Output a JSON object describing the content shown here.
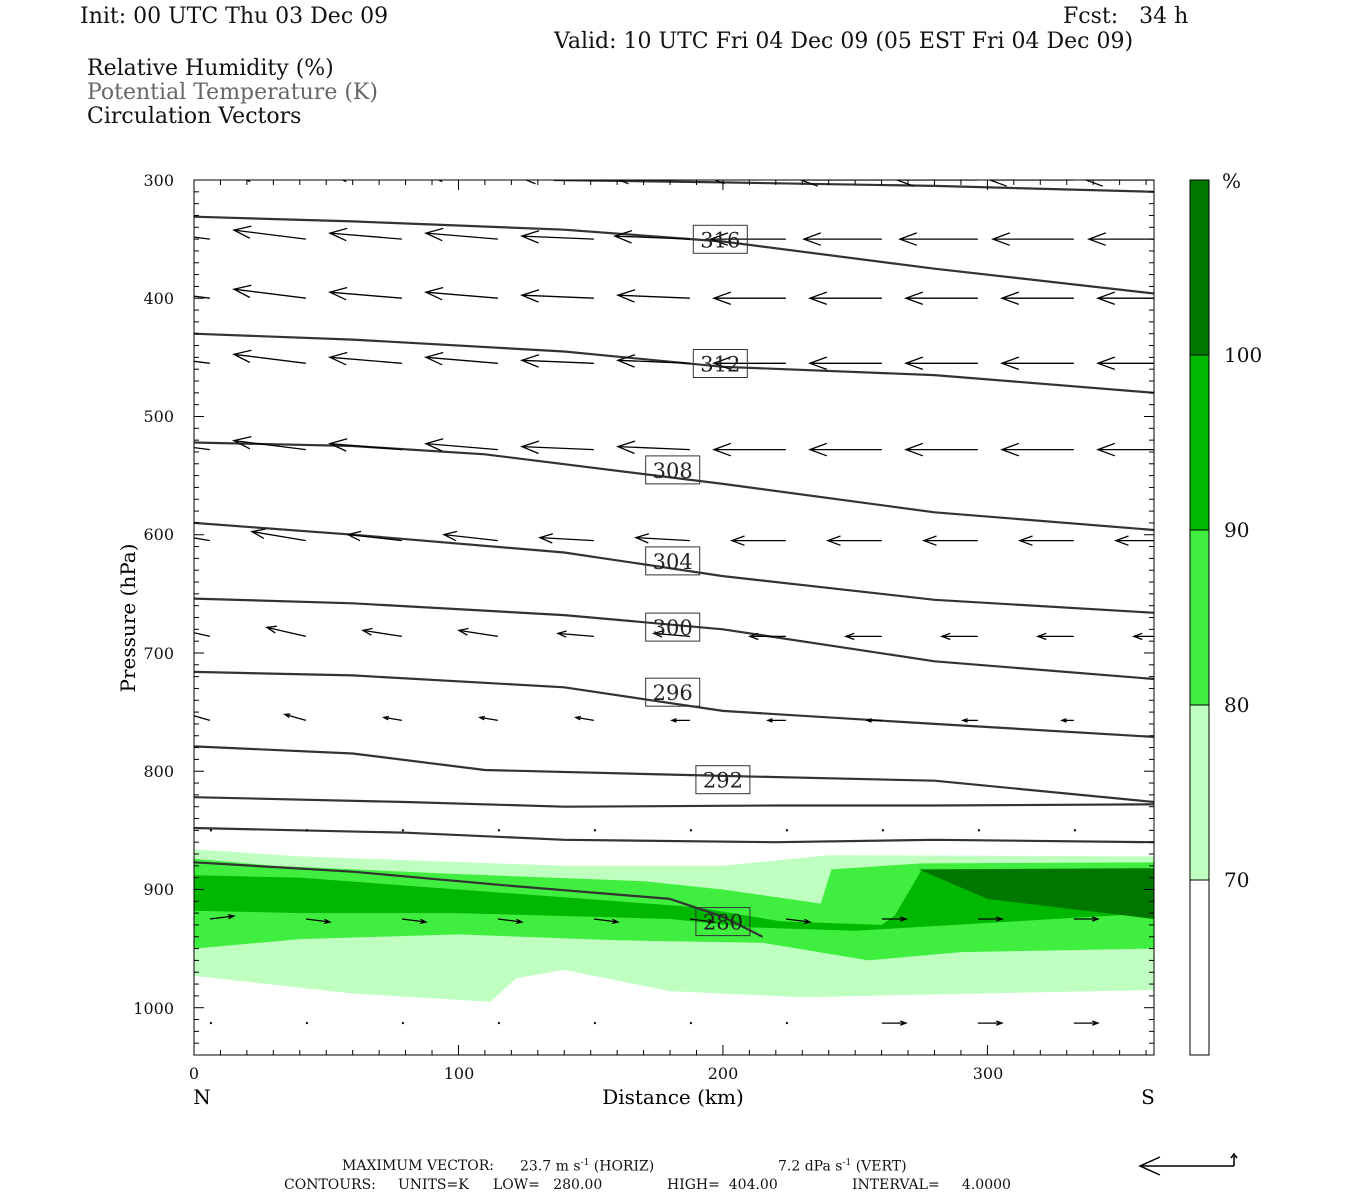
{
  "header": {
    "init": "Init: 00 UTC Thu 03 Dec 09",
    "fcst": "Fcst:   34 h",
    "valid": "Valid: 10 UTC Fri 04 Dec 09 (05 EST Fri 04 Dec 09)"
  },
  "legend": {
    "field1": "Relative Humidity (%)",
    "field2": "Potential Temperature (K)",
    "field3": "Circulation Vectors"
  },
  "chart_data": {
    "type": "cross-section",
    "title": "",
    "xlabel": "Distance (km)",
    "ylabel": "Pressure (hPa)",
    "x_range": [
      0,
      363
    ],
    "y_range": [
      300,
      1040
    ],
    "y_scale": "linear, inverted (pressure decreasing upward)",
    "x_ticks": [
      0,
      100,
      200,
      300
    ],
    "y_ticks": [
      300,
      400,
      500,
      600,
      700,
      800,
      900,
      1000
    ],
    "endpoint_left": "N",
    "endpoint_right": "S",
    "grid": false,
    "colors": {
      "rh_70_80": "#bfffbf",
      "rh_80_90": "#40ee40",
      "rh_90_100": "#00b800",
      "rh_100": "#007800",
      "contour": "#333333",
      "vector": "#000000"
    },
    "colorbar": {
      "unit": "%",
      "levels": [
        "70",
        "80",
        "90",
        "100"
      ]
    },
    "theta_contours": [
      {
        "label": "280",
        "x": [
          0,
          60,
          120,
          180,
          200,
          215
        ],
        "p": [
          877,
          885,
          897,
          908,
          923,
          940
        ]
      },
      {
        "x": [
          0,
          80,
          140,
          220,
          280,
          363
        ],
        "p": [
          848,
          852,
          858,
          860,
          858,
          860
        ]
      },
      {
        "x": [
          0,
          80,
          140,
          220,
          280,
          363
        ],
        "p": [
          822,
          826,
          830,
          829,
          829,
          828
        ]
      },
      {
        "label": "292",
        "x": [
          0,
          60,
          110,
          200,
          280,
          363
        ],
        "p": [
          779,
          785,
          799,
          804,
          808,
          826
        ]
      },
      {
        "label": "296",
        "x": [
          0,
          60,
          140,
          200,
          280,
          363
        ],
        "p": [
          716,
          719,
          729,
          749,
          760,
          771
        ]
      },
      {
        "label": "300",
        "x": [
          0,
          60,
          140,
          200,
          280,
          363
        ],
        "p": [
          654,
          658,
          668,
          680,
          707,
          722
        ]
      },
      {
        "label": "304",
        "x": [
          0,
          60,
          140,
          200,
          280,
          363
        ],
        "p": [
          590,
          600,
          615,
          635,
          655,
          666
        ]
      },
      {
        "label": "308",
        "x": [
          0,
          60,
          110,
          200,
          280,
          363
        ],
        "p": [
          522,
          525,
          532,
          557,
          581,
          596
        ]
      },
      {
        "label": "312",
        "x": [
          0,
          60,
          140,
          200,
          280,
          363
        ],
        "p": [
          430,
          435,
          445,
          458,
          465,
          480
        ]
      },
      {
        "label": "316",
        "x": [
          0,
          60,
          140,
          200,
          280,
          363
        ],
        "p": [
          331,
          335,
          342,
          352,
          375,
          396
        ]
      },
      {
        "x": [
          136,
          200,
          280,
          363
        ],
        "p": [
          300,
          302,
          305,
          310
        ]
      }
    ],
    "label_positions": [
      {
        "label": "280",
        "x": 200,
        "p": 928
      },
      {
        "label": "292",
        "x": 200,
        "p": 808
      },
      {
        "label": "296",
        "x": 181,
        "p": 734
      },
      {
        "label": "300",
        "x": 181,
        "p": 679
      },
      {
        "label": "304",
        "x": 181,
        "p": 623
      },
      {
        "label": "308",
        "x": 181,
        "p": 546
      },
      {
        "label": "312",
        "x": 199,
        "p": 456
      },
      {
        "label": "316",
        "x": 199,
        "p": 351
      }
    ],
    "rh_regions": [
      {
        "level": "70-80",
        "outline_x": [
          0,
          40,
          140,
          200,
          240,
          363,
          363,
          230,
          180,
          140,
          122,
          112,
          60,
          0
        ],
        "outline_p": [
          866,
          872,
          880,
          880,
          871,
          872,
          985,
          991,
          986,
          968,
          975,
          995,
          988,
          973
        ]
      },
      {
        "level": "80-90",
        "outline_x": [
          0,
          30,
          100,
          170,
          200,
          237,
          241,
          275,
          363,
          363,
          290,
          255,
          215,
          160,
          100,
          40,
          0
        ],
        "outline_p": [
          874,
          880,
          887,
          893,
          900,
          912,
          883,
          878,
          877,
          950,
          953,
          960,
          945,
          943,
          938,
          942,
          950
        ]
      },
      {
        "level": "90-100",
        "outline_x": [
          0,
          40,
          100,
          160,
          190,
          222,
          260,
          265,
          275,
          363,
          363,
          250,
          210,
          180,
          100,
          40,
          0
        ],
        "outline_p": [
          888,
          890,
          900,
          910,
          915,
          927,
          930,
          922,
          884,
          883,
          920,
          935,
          932,
          925,
          920,
          920,
          918
        ]
      },
      {
        "level": "100+",
        "outline_x": [
          274,
          363,
          363,
          300
        ],
        "outline_p": [
          883,
          882,
          925,
          908
        ]
      }
    ],
    "vectors": [
      {
        "p": 300,
        "rows": [
          [
            -24,
            2
          ],
          [
            -24,
            2
          ],
          [
            -24,
            2
          ],
          [
            -24,
            2
          ],
          [
            -25,
            1
          ],
          [
            -26,
            1
          ],
          [
            -26,
            1
          ],
          [
            -27,
            0
          ],
          [
            -27,
            0
          ],
          [
            -28,
            0
          ],
          [
            -28,
            0
          ]
        ]
      },
      {
        "p": 350,
        "rows": [
          [
            -24,
            3
          ],
          [
            -24,
            3
          ],
          [
            -24,
            2
          ],
          [
            -24,
            2
          ],
          [
            -24,
            1
          ],
          [
            -25,
            1
          ],
          [
            -25,
            0
          ],
          [
            -26,
            0
          ],
          [
            -26,
            0
          ],
          [
            -27,
            0
          ],
          [
            -27,
            0
          ]
        ]
      },
      {
        "p": 400,
        "rows": [
          [
            -24,
            3
          ],
          [
            -24,
            3
          ],
          [
            -24,
            2
          ],
          [
            -24,
            2
          ],
          [
            -24,
            1
          ],
          [
            -24,
            1
          ],
          [
            -24,
            0
          ],
          [
            -24,
            0
          ],
          [
            -24,
            0
          ],
          [
            -24,
            0
          ],
          [
            -24,
            0
          ]
        ]
      },
      {
        "p": 455,
        "rows": [
          [
            -24,
            3
          ],
          [
            -24,
            3
          ],
          [
            -24,
            2
          ],
          [
            -24,
            2
          ],
          [
            -24,
            1
          ],
          [
            -24,
            1
          ],
          [
            -24,
            0
          ],
          [
            -24,
            0
          ],
          [
            -24,
            0
          ],
          [
            -24,
            0
          ],
          [
            -24,
            0
          ]
        ]
      },
      {
        "p": 528,
        "rows": [
          [
            -24,
            3
          ],
          [
            -24,
            3
          ],
          [
            -24,
            2
          ],
          [
            -24,
            2
          ],
          [
            -24,
            1
          ],
          [
            -24,
            1
          ],
          [
            -24,
            0
          ],
          [
            -24,
            0
          ],
          [
            -24,
            0
          ],
          [
            -24,
            0
          ],
          [
            -24,
            0
          ]
        ]
      },
      {
        "p": 605,
        "rows": [
          [
            -18,
            3
          ],
          [
            -18,
            3
          ],
          [
            -18,
            2
          ],
          [
            -18,
            2
          ],
          [
            -18,
            1
          ],
          [
            -18,
            1
          ],
          [
            -18,
            0
          ],
          [
            -18,
            0
          ],
          [
            -18,
            0
          ],
          [
            -18,
            0
          ],
          [
            -18,
            0
          ]
        ]
      },
      {
        "p": 686,
        "rows": [
          [
            -13,
            3
          ],
          [
            -13,
            3
          ],
          [
            -13,
            2
          ],
          [
            -13,
            2
          ],
          [
            -12,
            1
          ],
          [
            -12,
            1
          ],
          [
            -12,
            0
          ],
          [
            -12,
            0
          ],
          [
            -12,
            0
          ],
          [
            -12,
            0
          ],
          [
            -12,
            0
          ]
        ]
      },
      {
        "p": 757,
        "rows": [
          [
            -7,
            2
          ],
          [
            -7,
            2
          ],
          [
            -6,
            1
          ],
          [
            -6,
            1
          ],
          [
            -6,
            1
          ],
          [
            -6,
            0
          ],
          [
            -6,
            0
          ],
          [
            -5,
            0
          ],
          [
            -5,
            0
          ],
          [
            -4,
            0
          ],
          [
            -3,
            0
          ]
        ]
      },
      {
        "p": 850,
        "rows": [
          [
            0,
            0
          ],
          [
            0,
            0
          ],
          [
            0,
            0
          ],
          [
            0,
            0
          ],
          [
            0,
            0
          ],
          [
            0,
            0
          ],
          [
            0,
            0
          ],
          [
            0,
            0
          ],
          [
            0,
            0
          ],
          [
            0,
            0
          ],
          [
            0,
            0
          ]
        ]
      },
      {
        "p": 925,
        "rows": [
          [
            8,
            1
          ],
          [
            8,
            -1
          ],
          [
            8,
            -1
          ],
          [
            8,
            -1
          ],
          [
            8,
            -1
          ],
          [
            8,
            -1
          ],
          [
            8,
            -1
          ],
          [
            8,
            0
          ],
          [
            8,
            0
          ],
          [
            8,
            0
          ],
          [
            8,
            0
          ]
        ]
      },
      {
        "p": 1013,
        "rows": [
          [
            0,
            0
          ],
          [
            0,
            0
          ],
          [
            0,
            0
          ],
          [
            0,
            0
          ],
          [
            0,
            0
          ],
          [
            0,
            0
          ],
          [
            0,
            0
          ],
          [
            8,
            0
          ],
          [
            8,
            0
          ],
          [
            8,
            0
          ],
          [
            8,
            0
          ]
        ]
      }
    ]
  },
  "axis": {
    "ylabel": "Pressure (hPa)",
    "xlabel": "Distance (km)",
    "y_tick_labels": [
      "300",
      "400",
      "500",
      "600",
      "700",
      "800",
      "900",
      "1000"
    ],
    "x_tick_labels": [
      "0",
      "100",
      "200",
      "300"
    ],
    "left_end": "N",
    "right_end": "S"
  },
  "colorbar": {
    "unit": "%",
    "labels": [
      "100",
      "90",
      "80",
      "70"
    ]
  },
  "footer": {
    "max_vector_label": "MAXIMUM VECTOR:",
    "max_vector_horiz": "23.7 m s",
    "max_vector_horiz_unit": "(HORIZ)",
    "max_vector_vert": "7.2 dPa s",
    "max_vector_vert_unit": "(VERT)",
    "superscript": "-1",
    "contours_label": "CONTOURS:",
    "contours_units": "UNITS=K",
    "contours_low": "LOW=   280.00",
    "contours_high": "HIGH=  404.00",
    "contours_interval": "INTERVAL=     4.0000"
  }
}
